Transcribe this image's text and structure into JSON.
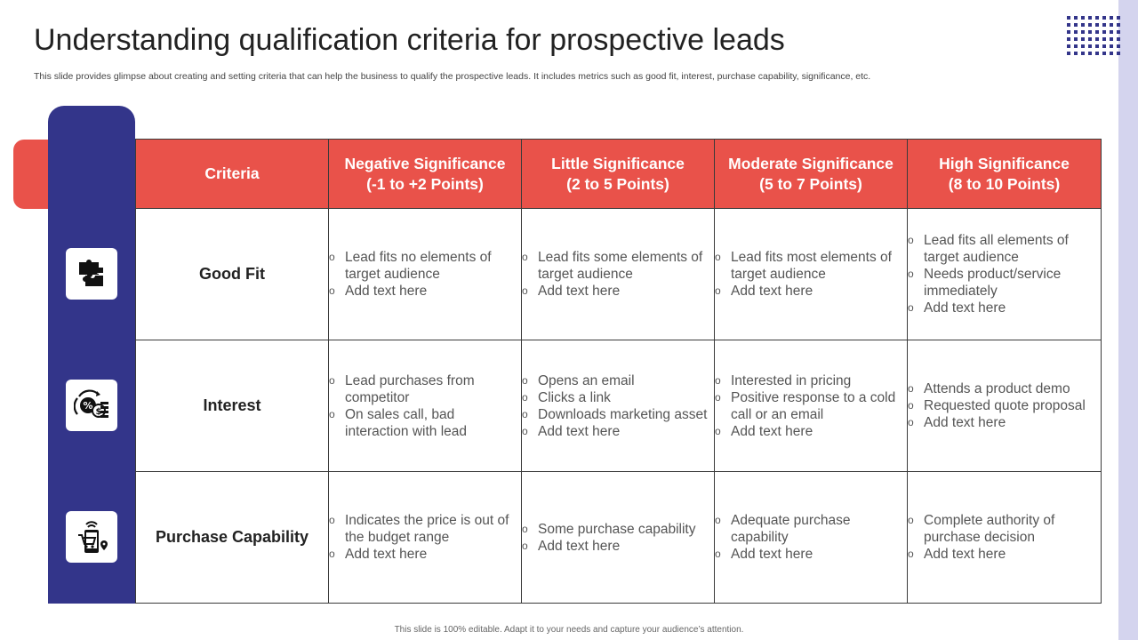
{
  "slide": {
    "title": "Understanding qualification criteria for prospective leads",
    "subtitle": "This slide provides glimpse about creating and setting criteria that can help the business to qualify the prospective leads. It includes metrics such as good fit, interest, purchase capability, significance, etc.",
    "footer": "This slide is 100% editable.  Adapt it to your needs and capture your audience’s attention."
  },
  "colors": {
    "accent_red": "#e9524a",
    "accent_navy": "#33358a",
    "strip_lavender": "#d4d4ee"
  },
  "table": {
    "headers": [
      {
        "line1": "Criteria",
        "line2": ""
      },
      {
        "line1": "Negative Significance",
        "line2": "(-1 to +2 Points)"
      },
      {
        "line1": "Little Significance",
        "line2": "(2 to 5 Points)"
      },
      {
        "line1": "Moderate Significance",
        "line2": "(5 to 7 Points)"
      },
      {
        "line1": "High Significance",
        "line2": "(8 to 10 Points)"
      }
    ],
    "rows": [
      {
        "criteria": "Good Fit",
        "icon": "puzzle-icon",
        "cells": [
          [
            "Lead fits no elements of target audience",
            "Add text here"
          ],
          [
            "Lead fits some elements of target audience",
            "Add text here"
          ],
          [
            "Lead fits most elements of target audience",
            "Add text here"
          ],
          [
            "Lead fits all elements of target audience",
            "Needs product/service immediately",
            "Add text here"
          ]
        ]
      },
      {
        "criteria": "Interest",
        "icon": "discount-money-icon",
        "cells": [
          [
            "Lead purchases from competitor",
            "On sales call, bad interaction with lead"
          ],
          [
            "Opens an email",
            "Clicks a link",
            "Downloads marketing asset",
            "Add text here"
          ],
          [
            "Interested in pricing",
            "Positive response to a cold call or an email",
            "Add text here"
          ],
          [
            "Attends a product demo",
            "Requested quote proposal",
            "Add text here"
          ]
        ]
      },
      {
        "criteria": "Purchase Capability",
        "icon": "mobile-shopping-icon",
        "cells": [
          [
            "Indicates the price is out of the budget range",
            "Add text here"
          ],
          [
            "Some purchase capability",
            "Add text here"
          ],
          [
            "Adequate purchase capability",
            "Add text here"
          ],
          [
            "Complete authority of purchase decision",
            "Add text here"
          ]
        ]
      }
    ]
  }
}
